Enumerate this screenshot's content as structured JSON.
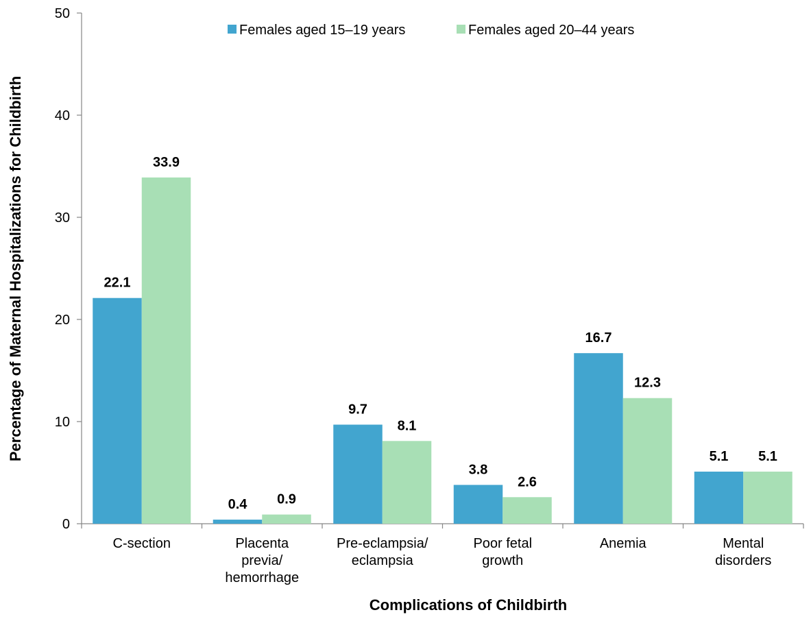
{
  "chart_data": {
    "type": "bar",
    "title": "",
    "xlabel": "Complications of Childbirth",
    "ylabel": "Percentage of Maternal Hospitalizations for Childbirth",
    "ylim": [
      0,
      50
    ],
    "yticks": [
      0,
      10,
      20,
      30,
      40,
      50
    ],
    "ytick_labels": [
      "0",
      "10",
      "20",
      "30",
      "40",
      "50"
    ],
    "grid": false,
    "legend_position": "top-center",
    "categories": [
      [
        "C-section"
      ],
      [
        "Placenta",
        "previa/",
        "hemorrhage"
      ],
      [
        "Pre-eclampsia/",
        "eclampsia"
      ],
      [
        "Poor fetal",
        "growth"
      ],
      [
        "Anemia"
      ],
      [
        "Mental",
        "disorders"
      ]
    ],
    "series": [
      {
        "name": "Females aged 15–19 years",
        "color": "#42a5cf",
        "values": [
          22.1,
          0.4,
          9.7,
          3.8,
          16.7,
          5.1
        ],
        "labels": [
          "22.1",
          "0.4",
          "9.7",
          "3.8",
          "16.7",
          "5.1"
        ]
      },
      {
        "name": "Females aged 20–44 years",
        "color": "#a8dfb5",
        "values": [
          33.9,
          0.9,
          8.1,
          2.6,
          12.3,
          5.1
        ],
        "labels": [
          "33.9",
          "0.9",
          "8.1",
          "2.6",
          "12.3",
          "5.1"
        ]
      }
    ]
  }
}
